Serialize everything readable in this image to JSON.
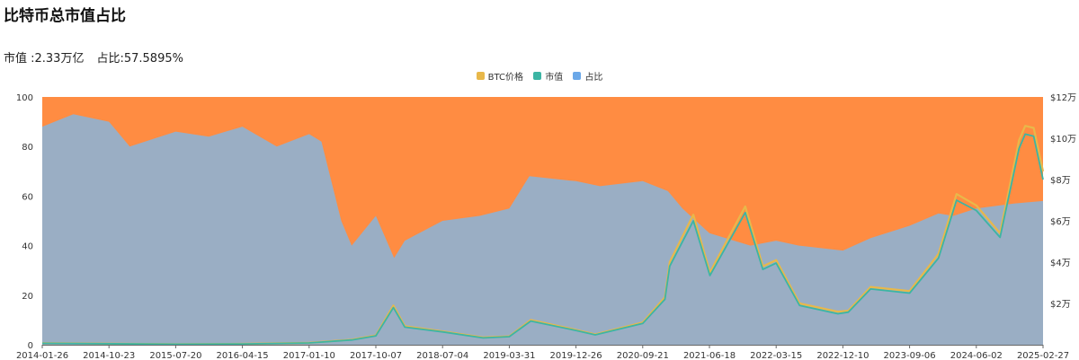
{
  "title": "比特币总市值占比",
  "summary": {
    "market_cap": "市值 :2.33万亿",
    "dominance": "占比:57.5895%"
  },
  "colors": {
    "btc_price": "#e8b84a",
    "market_cap": "#3cb5a4",
    "dominance": "#6ba8e8",
    "dominance_area": "#9aaec4",
    "rest_area": "#ff8c42"
  },
  "chart_data": {
    "type": "area",
    "title": "比特币总市值占比",
    "legend": {
      "position": "top-center",
      "items": [
        "BTC价格",
        "市值",
        "占比"
      ]
    },
    "x_ticks": [
      "2014-01-26",
      "2014-10-23",
      "2015-07-20",
      "2016-04-15",
      "2017-01-10",
      "2017-10-07",
      "2018-07-04",
      "2019-03-31",
      "2019-12-26",
      "2020-09-21",
      "2021-06-18",
      "2022-03-15",
      "2022-12-10",
      "2023-09-06",
      "2024-06-02",
      "2025-02-27"
    ],
    "y_left": {
      "range": [
        0,
        100
      ],
      "ticks": [
        "0",
        "20",
        "40",
        "60",
        "80",
        "100"
      ]
    },
    "y_right": {
      "range": [
        0,
        120000
      ],
      "ticks": [
        "$2万",
        "$4万",
        "$6万",
        "$8万",
        "$10万",
        "$12万"
      ]
    },
    "grid": false,
    "series": [
      {
        "name": "占比",
        "axis": "left",
        "x": [
          "2014-01-26",
          "2014-06-01",
          "2014-10-23",
          "2015-01-15",
          "2015-07-20",
          "2015-12-01",
          "2016-04-15",
          "2016-09-01",
          "2017-01-10",
          "2017-03-01",
          "2017-05-20",
          "2017-07-01",
          "2017-10-07",
          "2017-12-20",
          "2018-02-01",
          "2018-07-04",
          "2018-12-01",
          "2019-03-31",
          "2019-06-20",
          "2019-12-26",
          "2020-04-01",
          "2020-09-21",
          "2021-01-01",
          "2021-03-01",
          "2021-06-18",
          "2021-12-01",
          "2022-03-15",
          "2022-06-15",
          "2022-12-10",
          "2023-04-01",
          "2023-09-06",
          "2024-01-01",
          "2024-03-01",
          "2024-06-02",
          "2024-11-01",
          "2025-02-27"
        ],
        "values": [
          88,
          93,
          90,
          80,
          86,
          84,
          88,
          80,
          85,
          82,
          50,
          40,
          52,
          35,
          42,
          50,
          52,
          55,
          68,
          66,
          64,
          66,
          62,
          55,
          45,
          40,
          42,
          40,
          38,
          43,
          48,
          53,
          52,
          55,
          57,
          58
        ]
      },
      {
        "name": "BTC价格",
        "axis": "right",
        "x": [
          "2014-01-26",
          "2015-07-20",
          "2016-04-15",
          "2017-01-10",
          "2017-07-01",
          "2017-10-07",
          "2017-12-17",
          "2018-02-01",
          "2018-07-04",
          "2018-12-15",
          "2019-03-31",
          "2019-06-26",
          "2019-12-26",
          "2020-03-13",
          "2020-09-21",
          "2020-12-20",
          "2021-01-08",
          "2021-04-14",
          "2021-06-20",
          "2021-11-10",
          "2022-01-20",
          "2022-03-15",
          "2022-06-18",
          "2022-11-20",
          "2023-01-01",
          "2023-04-01",
          "2023-09-06",
          "2024-01-01",
          "2024-03-14",
          "2024-06-02",
          "2024-09-06",
          "2024-11-22",
          "2024-12-17",
          "2025-01-20",
          "2025-02-27"
        ],
        "values": [
          800,
          300,
          450,
          900,
          2500,
          4500,
          19000,
          9000,
          6500,
          3500,
          4100,
          12000,
          7200,
          5000,
          10800,
          23000,
          40000,
          63000,
          35000,
          67000,
          38000,
          41000,
          20000,
          16000,
          16500,
          28000,
          26000,
          44000,
          73000,
          67500,
          54000,
          99000,
          106000,
          105000,
          84000
        ]
      },
      {
        "name": "市值",
        "axis": "right",
        "unit": "USD",
        "x": [
          "2014-01-26",
          "2015-07-20",
          "2016-04-15",
          "2017-01-10",
          "2017-07-01",
          "2017-10-07",
          "2017-12-17",
          "2018-02-01",
          "2018-07-04",
          "2018-12-15",
          "2019-03-31",
          "2019-06-26",
          "2019-12-26",
          "2020-03-13",
          "2020-09-21",
          "2020-12-20",
          "2021-01-08",
          "2021-04-14",
          "2021-06-20",
          "2021-11-10",
          "2022-01-20",
          "2022-03-15",
          "2022-06-18",
          "2022-11-20",
          "2023-01-01",
          "2023-04-01",
          "2023-09-06",
          "2024-01-01",
          "2024-03-14",
          "2024-06-02",
          "2024-09-06",
          "2024-11-22",
          "2024-12-17",
          "2025-01-20",
          "2025-02-27"
        ],
        "values": [
          700,
          250,
          400,
          850,
          2300,
          4300,
          18000,
          8500,
          6200,
          3300,
          3900,
          11500,
          6900,
          4800,
          10300,
          22000,
          38000,
          60000,
          33500,
          64000,
          36500,
          39500,
          19000,
          15000,
          15800,
          27000,
          25000,
          42000,
          70000,
          65000,
          52000,
          95000,
          102000,
          101000,
          80000
        ]
      }
    ]
  }
}
